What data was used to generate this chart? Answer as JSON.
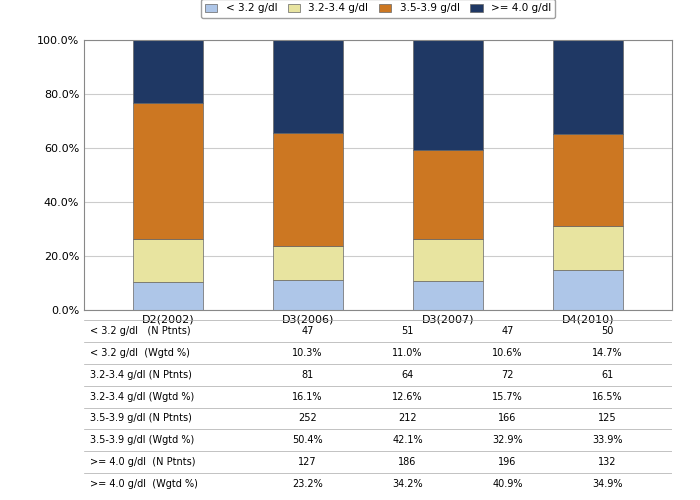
{
  "categories": [
    "D2(2002)",
    "D3(2006)",
    "D3(2007)",
    "D4(2010)"
  ],
  "series": [
    {
      "label": "< 3.2 g/dl",
      "color": "#aec6e8",
      "values": [
        10.3,
        11.0,
        10.6,
        14.7
      ]
    },
    {
      "label": "3.2-3.4 g/dl",
      "color": "#e8e4a0",
      "values": [
        16.1,
        12.6,
        15.7,
        16.5
      ]
    },
    {
      "label": "3.5-3.9 g/dl",
      "color": "#cc7722",
      "values": [
        50.4,
        42.1,
        32.9,
        33.9
      ]
    },
    {
      "label": ">= 4.0 g/dl",
      "color": "#1f3864",
      "values": [
        23.2,
        34.2,
        40.9,
        34.9
      ]
    }
  ],
  "table_rows": [
    {
      "label": "< 3.2 g/dl   (N Ptnts)",
      "values": [
        "47",
        "51",
        "47",
        "50"
      ]
    },
    {
      "label": "< 3.2 g/dl  (Wgtd %)",
      "values": [
        "10.3%",
        "11.0%",
        "10.6%",
        "14.7%"
      ]
    },
    {
      "label": "3.2-3.4 g/dl (N Ptnts)",
      "values": [
        "81",
        "64",
        "72",
        "61"
      ]
    },
    {
      "label": "3.2-3.4 g/dl (Wgtd %)",
      "values": [
        "16.1%",
        "12.6%",
        "15.7%",
        "16.5%"
      ]
    },
    {
      "label": "3.5-3.9 g/dl (N Ptnts)",
      "values": [
        "252",
        "212",
        "166",
        "125"
      ]
    },
    {
      "label": "3.5-3.9 g/dl (Wgtd %)",
      "values": [
        "50.4%",
        "42.1%",
        "32.9%",
        "33.9%"
      ]
    },
    {
      "label": ">= 4.0 g/dl  (N Ptnts)",
      "values": [
        "127",
        "186",
        "196",
        "132"
      ]
    },
    {
      "label": ">= 4.0 g/dl  (Wgtd %)",
      "values": [
        "23.2%",
        "34.2%",
        "40.9%",
        "34.9%"
      ]
    }
  ],
  "ylim": [
    0,
    100
  ],
  "ytick_values": [
    0,
    20,
    40,
    60,
    80,
    100
  ],
  "ytick_labels": [
    "0.0%",
    "20.0%",
    "40.0%",
    "60.0%",
    "80.0%",
    "100.0%"
  ],
  "bar_width": 0.5,
  "background_color": "#ffffff",
  "grid_color": "#cccccc"
}
